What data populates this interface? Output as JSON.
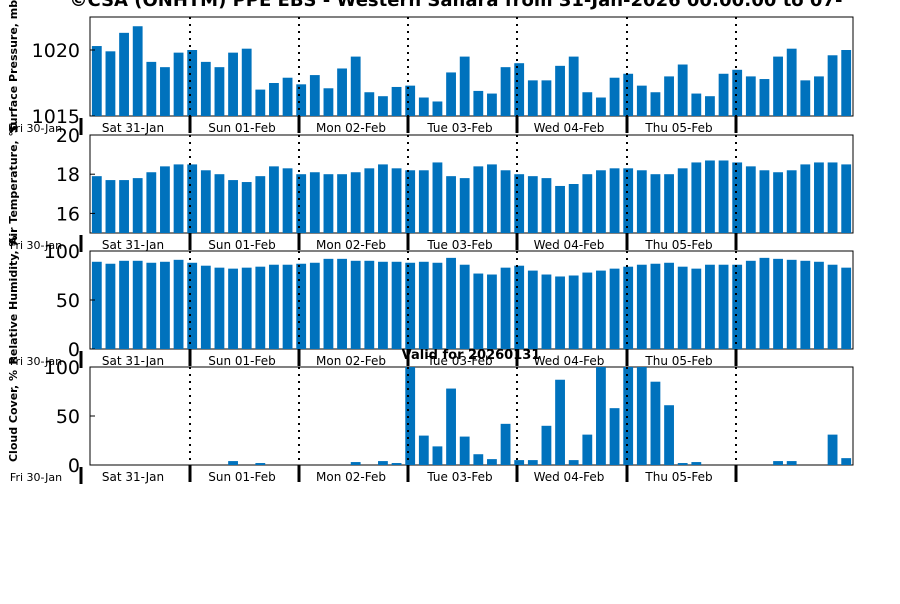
{
  "title": "©CSA (ONHTM) PPE EBS - Western Sahara from 31-Jan-2026 00:00:00 to 07-",
  "chart_data": {
    "type": "bar",
    "bar_color": "#0072bd",
    "x_ticks": [
      "Fri 30-Jan",
      "Sat 31-Jan",
      "Sun 01-Feb",
      "Mon 02-Feb",
      "Tue 03-Feb",
      "Wed 04-Feb",
      "Thu 05-Feb"
    ],
    "panels": [
      {
        "ylabel": "Surface Pressure, mb",
        "ylim": [
          1015,
          1022.5
        ],
        "yticks": [
          1015,
          1020
        ],
        "values": [
          1020.3,
          1019.9,
          1021.3,
          1021.8,
          1019.1,
          1018.7,
          1019.8,
          1020.0,
          1019.1,
          1018.7,
          1019.8,
          1020.1,
          1017.0,
          1017.5,
          1017.9,
          1017.4,
          1018.1,
          1017.1,
          1018.6,
          1019.5,
          1016.8,
          1016.5,
          1017.2,
          1017.3,
          1016.4,
          1016.1,
          1018.3,
          1019.5,
          1016.9,
          1016.7,
          1018.7,
          1019.0,
          1017.7,
          1017.7,
          1018.8,
          1019.5,
          1016.8,
          1016.4,
          1017.9,
          1018.2,
          1017.3,
          1016.8,
          1018.0,
          1018.9,
          1016.7,
          1016.5,
          1018.2,
          1018.5,
          1018.0,
          1017.8,
          1019.5,
          1020.1,
          1017.7,
          1018.0,
          1019.6,
          1020.0
        ]
      },
      {
        "ylabel": "Air Temperature, °C",
        "ylim": [
          15,
          20
        ],
        "yticks": [
          16,
          18,
          20
        ],
        "values": [
          17.9,
          17.7,
          17.7,
          17.8,
          18.1,
          18.4,
          18.5,
          18.5,
          18.2,
          18.0,
          17.7,
          17.6,
          17.9,
          18.4,
          18.3,
          18.0,
          18.1,
          18.0,
          18.0,
          18.1,
          18.3,
          18.5,
          18.3,
          18.2,
          18.2,
          18.6,
          17.9,
          17.8,
          18.4,
          18.5,
          18.2,
          18.0,
          17.9,
          17.8,
          17.4,
          17.5,
          18.0,
          18.2,
          18.3,
          18.3,
          18.2,
          18.0,
          18.0,
          18.3,
          18.6,
          18.7,
          18.7,
          18.6,
          18.4,
          18.2,
          18.1,
          18.2,
          18.5,
          18.6,
          18.6,
          18.5
        ]
      },
      {
        "ylabel": "Relative Humidity, %",
        "ylim": [
          0,
          100
        ],
        "yticks": [
          0,
          50,
          100
        ],
        "values": [
          89,
          87,
          90,
          90,
          88,
          89,
          91,
          88,
          85,
          83,
          82,
          83,
          84,
          86,
          86,
          87,
          88,
          92,
          92,
          90,
          90,
          89,
          89,
          88,
          89,
          88,
          93,
          86,
          77,
          76,
          83,
          85,
          80,
          76,
          74,
          75,
          78,
          80,
          82,
          84,
          86,
          87,
          88,
          84,
          82,
          86,
          86,
          86,
          90,
          93,
          92,
          91,
          90,
          89,
          86,
          83
        ]
      },
      {
        "ylabel": "Cloud Cover, %",
        "ylim": [
          0,
          100
        ],
        "yticks": [
          0,
          50,
          100
        ],
        "subtitle": "Valid for 20260131",
        "values": [
          0,
          0,
          0,
          0,
          0,
          0,
          0,
          0,
          0,
          0,
          4,
          0,
          2,
          0,
          0,
          0,
          0,
          0,
          0,
          3,
          0,
          4,
          2,
          100,
          30,
          19,
          78,
          29,
          11,
          6,
          42,
          5,
          5,
          40,
          87,
          5,
          31,
          100,
          58,
          100,
          100,
          85,
          61,
          2,
          3,
          0,
          0,
          0,
          0,
          0,
          4,
          4,
          0,
          0,
          31,
          7
        ]
      }
    ]
  }
}
